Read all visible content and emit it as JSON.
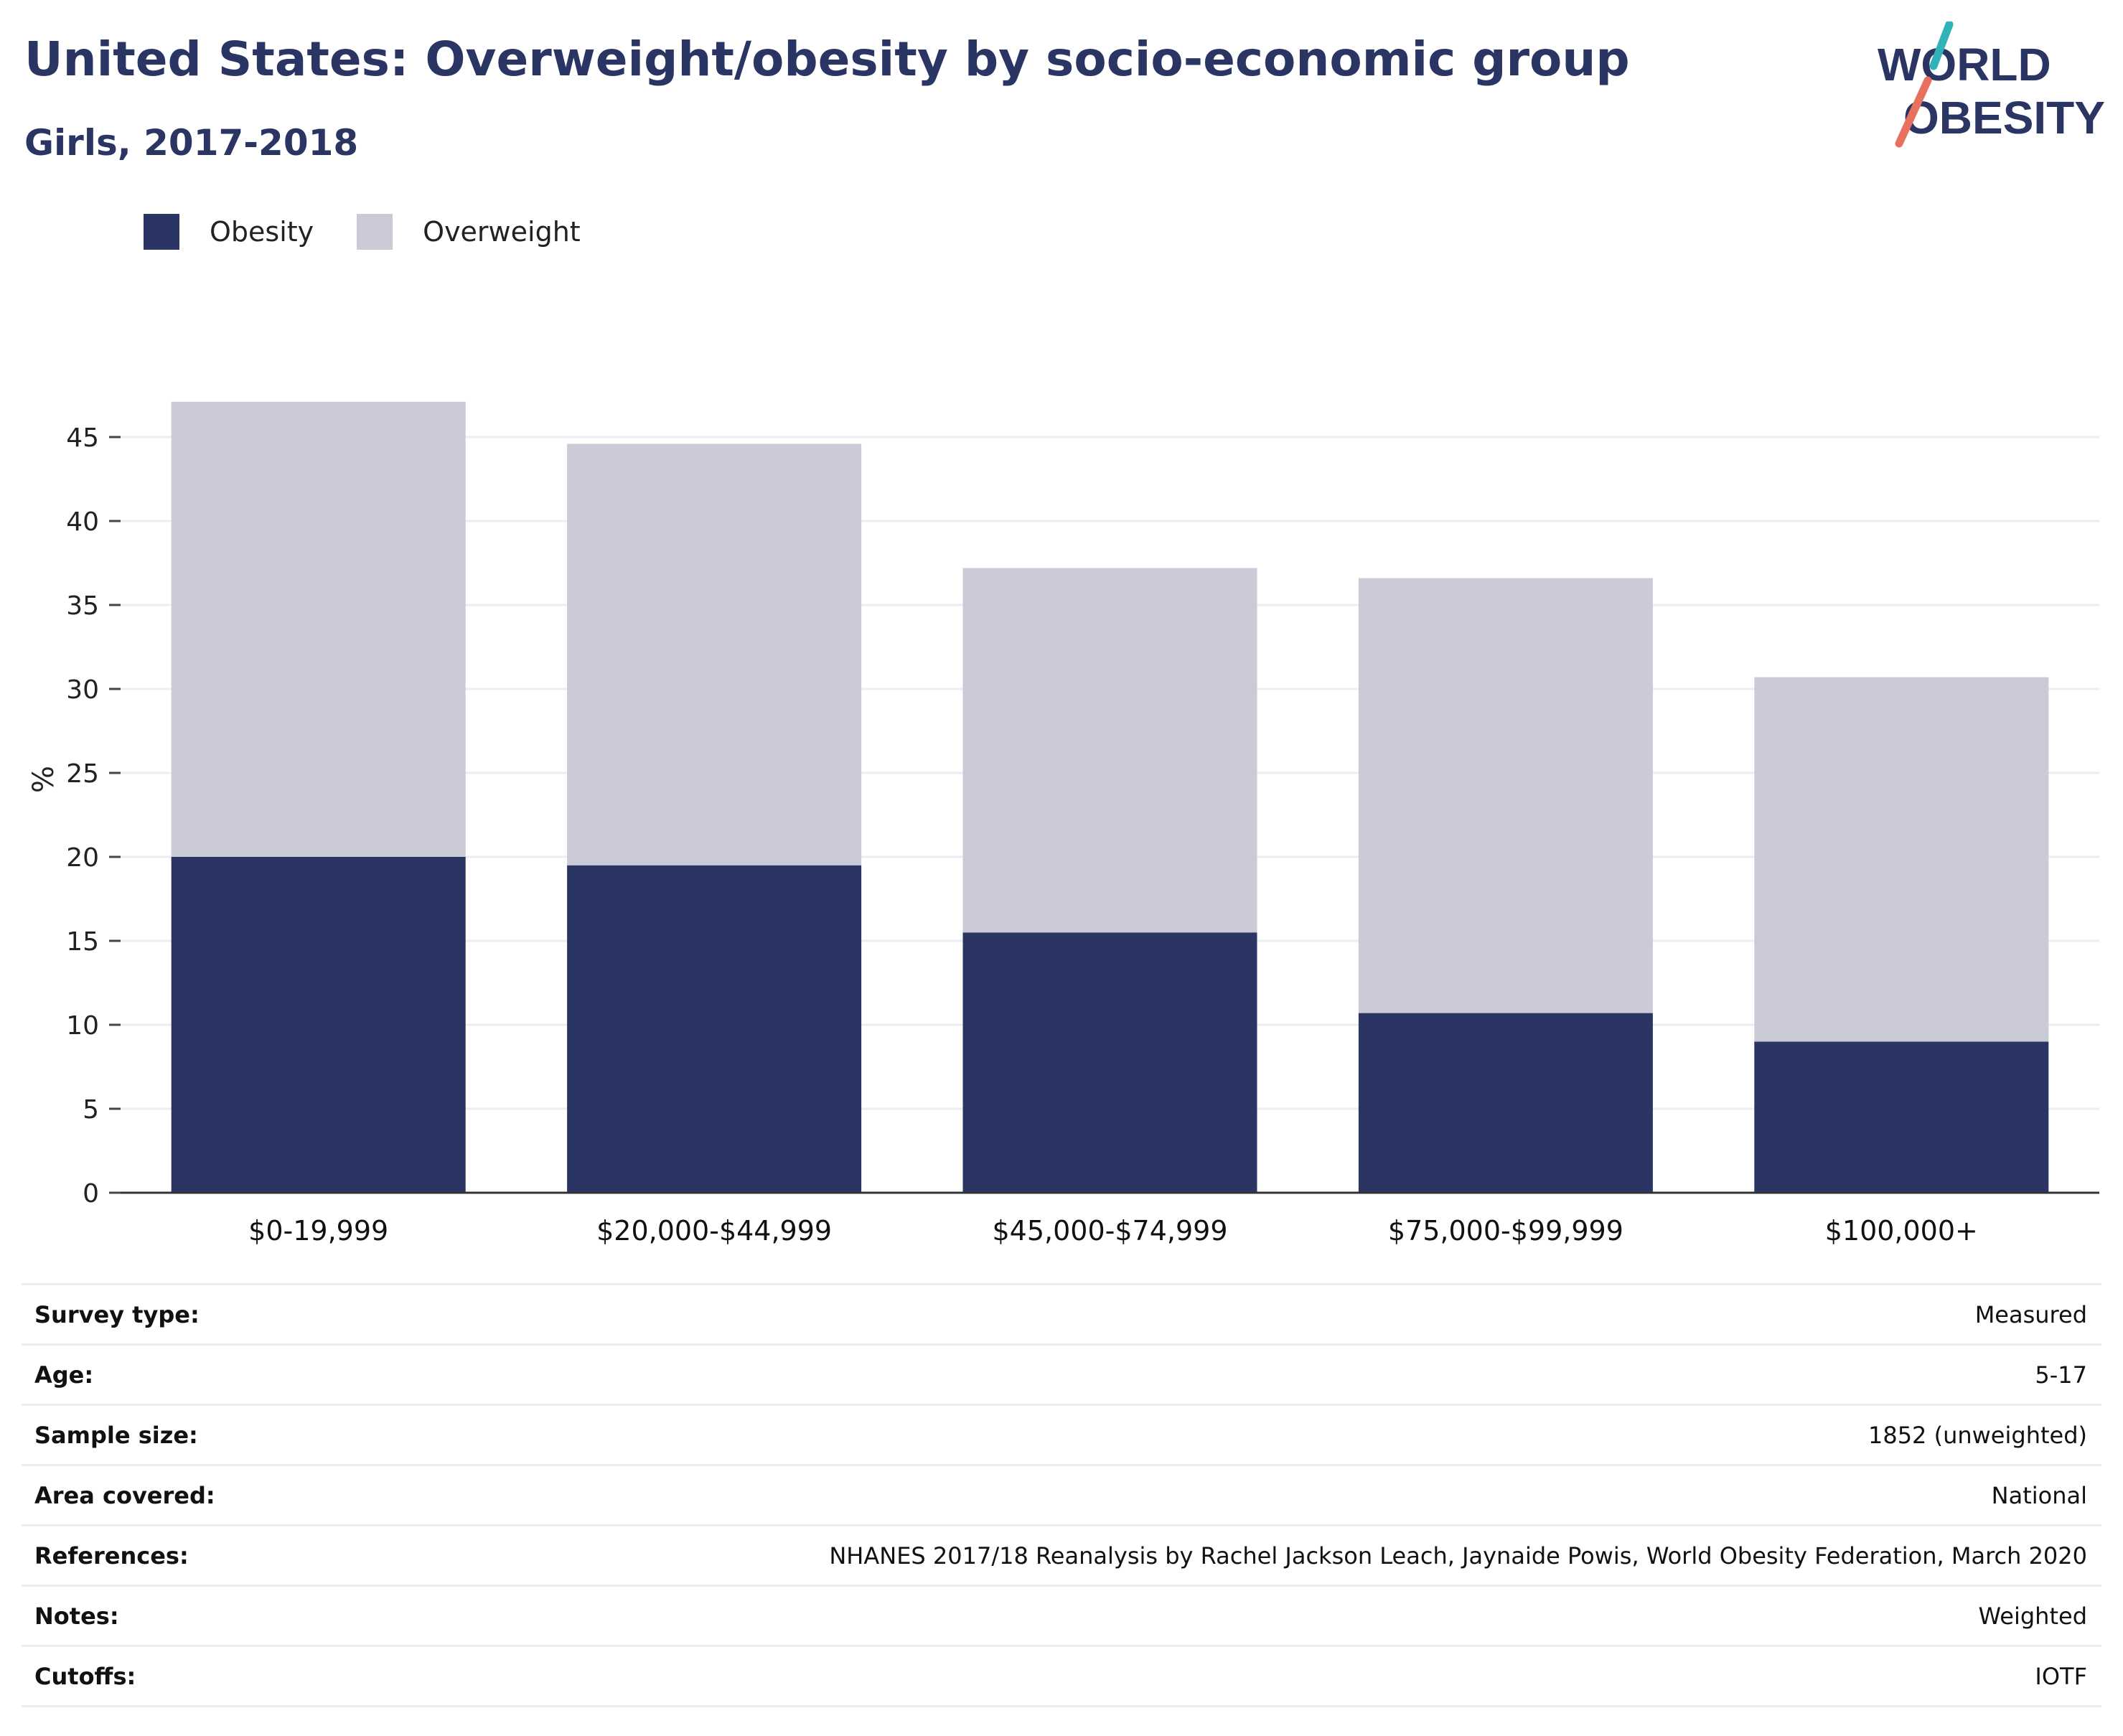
{
  "title": "United States: Overweight/obesity by socio-economic group",
  "subtitle": "Girls, 2017-2018",
  "logo": {
    "line1": "WORLD",
    "line2": "OBESITY",
    "accent_teal": "#2fb3b8",
    "accent_coral": "#e8705f"
  },
  "colors": {
    "obesity": "#2a3563",
    "overweight": "#cacbd7",
    "text": "#2a3563"
  },
  "chart_data": {
    "type": "bar",
    "stacked": true,
    "categories": [
      "$0-19,999",
      "$20,000-$44,999",
      "$45,000-$74,999",
      "$75,000-$99,999",
      "$100,000+"
    ],
    "series": [
      {
        "name": "Obesity",
        "values": [
          20.0,
          19.5,
          15.5,
          10.7,
          9.0
        ]
      },
      {
        "name": "Overweight",
        "values": [
          27.1,
          25.1,
          21.7,
          25.9,
          21.7
        ]
      }
    ],
    "ylabel": "%",
    "xlabel": "",
    "ylim": [
      0,
      50
    ],
    "yticks": [
      0,
      5,
      10,
      15,
      20,
      25,
      30,
      35,
      40,
      45
    ],
    "grid": true,
    "legend": "top-left"
  },
  "info": [
    {
      "key": "Survey type:",
      "value": "Measured"
    },
    {
      "key": "Age:",
      "value": "5-17"
    },
    {
      "key": "Sample size:",
      "value": "1852 (unweighted)"
    },
    {
      "key": "Area covered:",
      "value": "National"
    },
    {
      "key": "References:",
      "value": "NHANES 2017/18 Reanalysis by Rachel Jackson Leach, Jaynaide Powis, World Obesity Federation, March 2020"
    },
    {
      "key": "Notes:",
      "value": "Weighted"
    },
    {
      "key": "Cutoffs:",
      "value": "IOTF"
    }
  ]
}
